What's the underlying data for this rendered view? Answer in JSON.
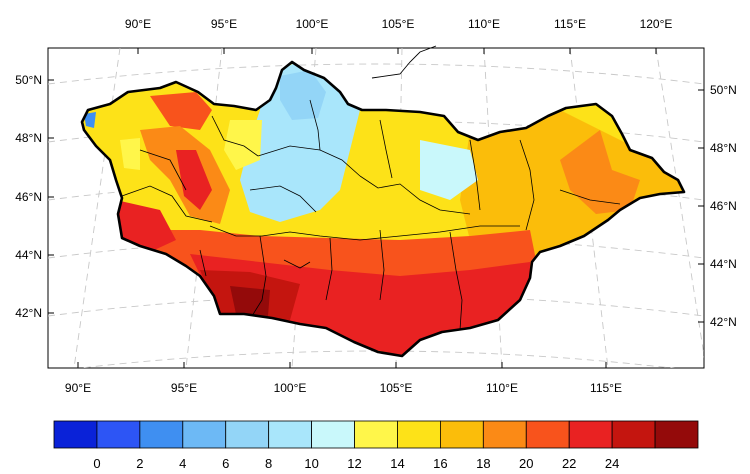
{
  "map": {
    "top_lon_labels": [
      "90°E",
      "95°E",
      "100°E",
      "105°E",
      "110°E",
      "115°E",
      "120°E"
    ],
    "bottom_lon_labels": [
      "90°E",
      "95°E",
      "100°E",
      "105°E",
      "110°E",
      "115°E"
    ],
    "left_lat_labels": [
      "50°N",
      "48°N",
      "46°N",
      "44°N",
      "42°N"
    ],
    "right_lat_labels": [
      "50°N",
      "48°N",
      "46°N",
      "44°N",
      "42°N"
    ]
  },
  "colorbar": {
    "labels": [
      "0",
      "2",
      "4",
      "6",
      "8",
      "10",
      "12",
      "14",
      "16",
      "18",
      "20",
      "22",
      "24"
    ],
    "colors": [
      "#0a22d8",
      "#2d55f5",
      "#3f8ff1",
      "#6db9f5",
      "#93d5f7",
      "#a9e6fb",
      "#c9f8fb",
      "#fff64a",
      "#fde218",
      "#fbbd0a",
      "#fb8a16",
      "#f8531c",
      "#e92222",
      "#c4150f",
      "#940a0a"
    ]
  },
  "chart_data": {
    "type": "heatmap",
    "title": "",
    "xlabel": "",
    "ylabel": "",
    "x_ticks": [
      "90°E",
      "95°E",
      "100°E",
      "105°E",
      "110°E",
      "115°E"
    ],
    "y_ticks": [
      "42°N",
      "44°N",
      "46°N",
      "48°N",
      "50°N"
    ],
    "color_scale": {
      "min": 0,
      "max": 24,
      "step": 2,
      "tick_labels": [
        "0",
        "2",
        "4",
        "6",
        "8",
        "10",
        "12",
        "14",
        "16",
        "18",
        "20",
        "22",
        "24"
      ]
    },
    "regions": [
      {
        "area": "north-central",
        "approx_value": 10
      },
      {
        "area": "central",
        "approx_value": 14
      },
      {
        "area": "east",
        "approx_value": 18
      },
      {
        "area": "south",
        "approx_value": 21
      },
      {
        "area": "south-west",
        "approx_value": 23
      }
    ]
  }
}
